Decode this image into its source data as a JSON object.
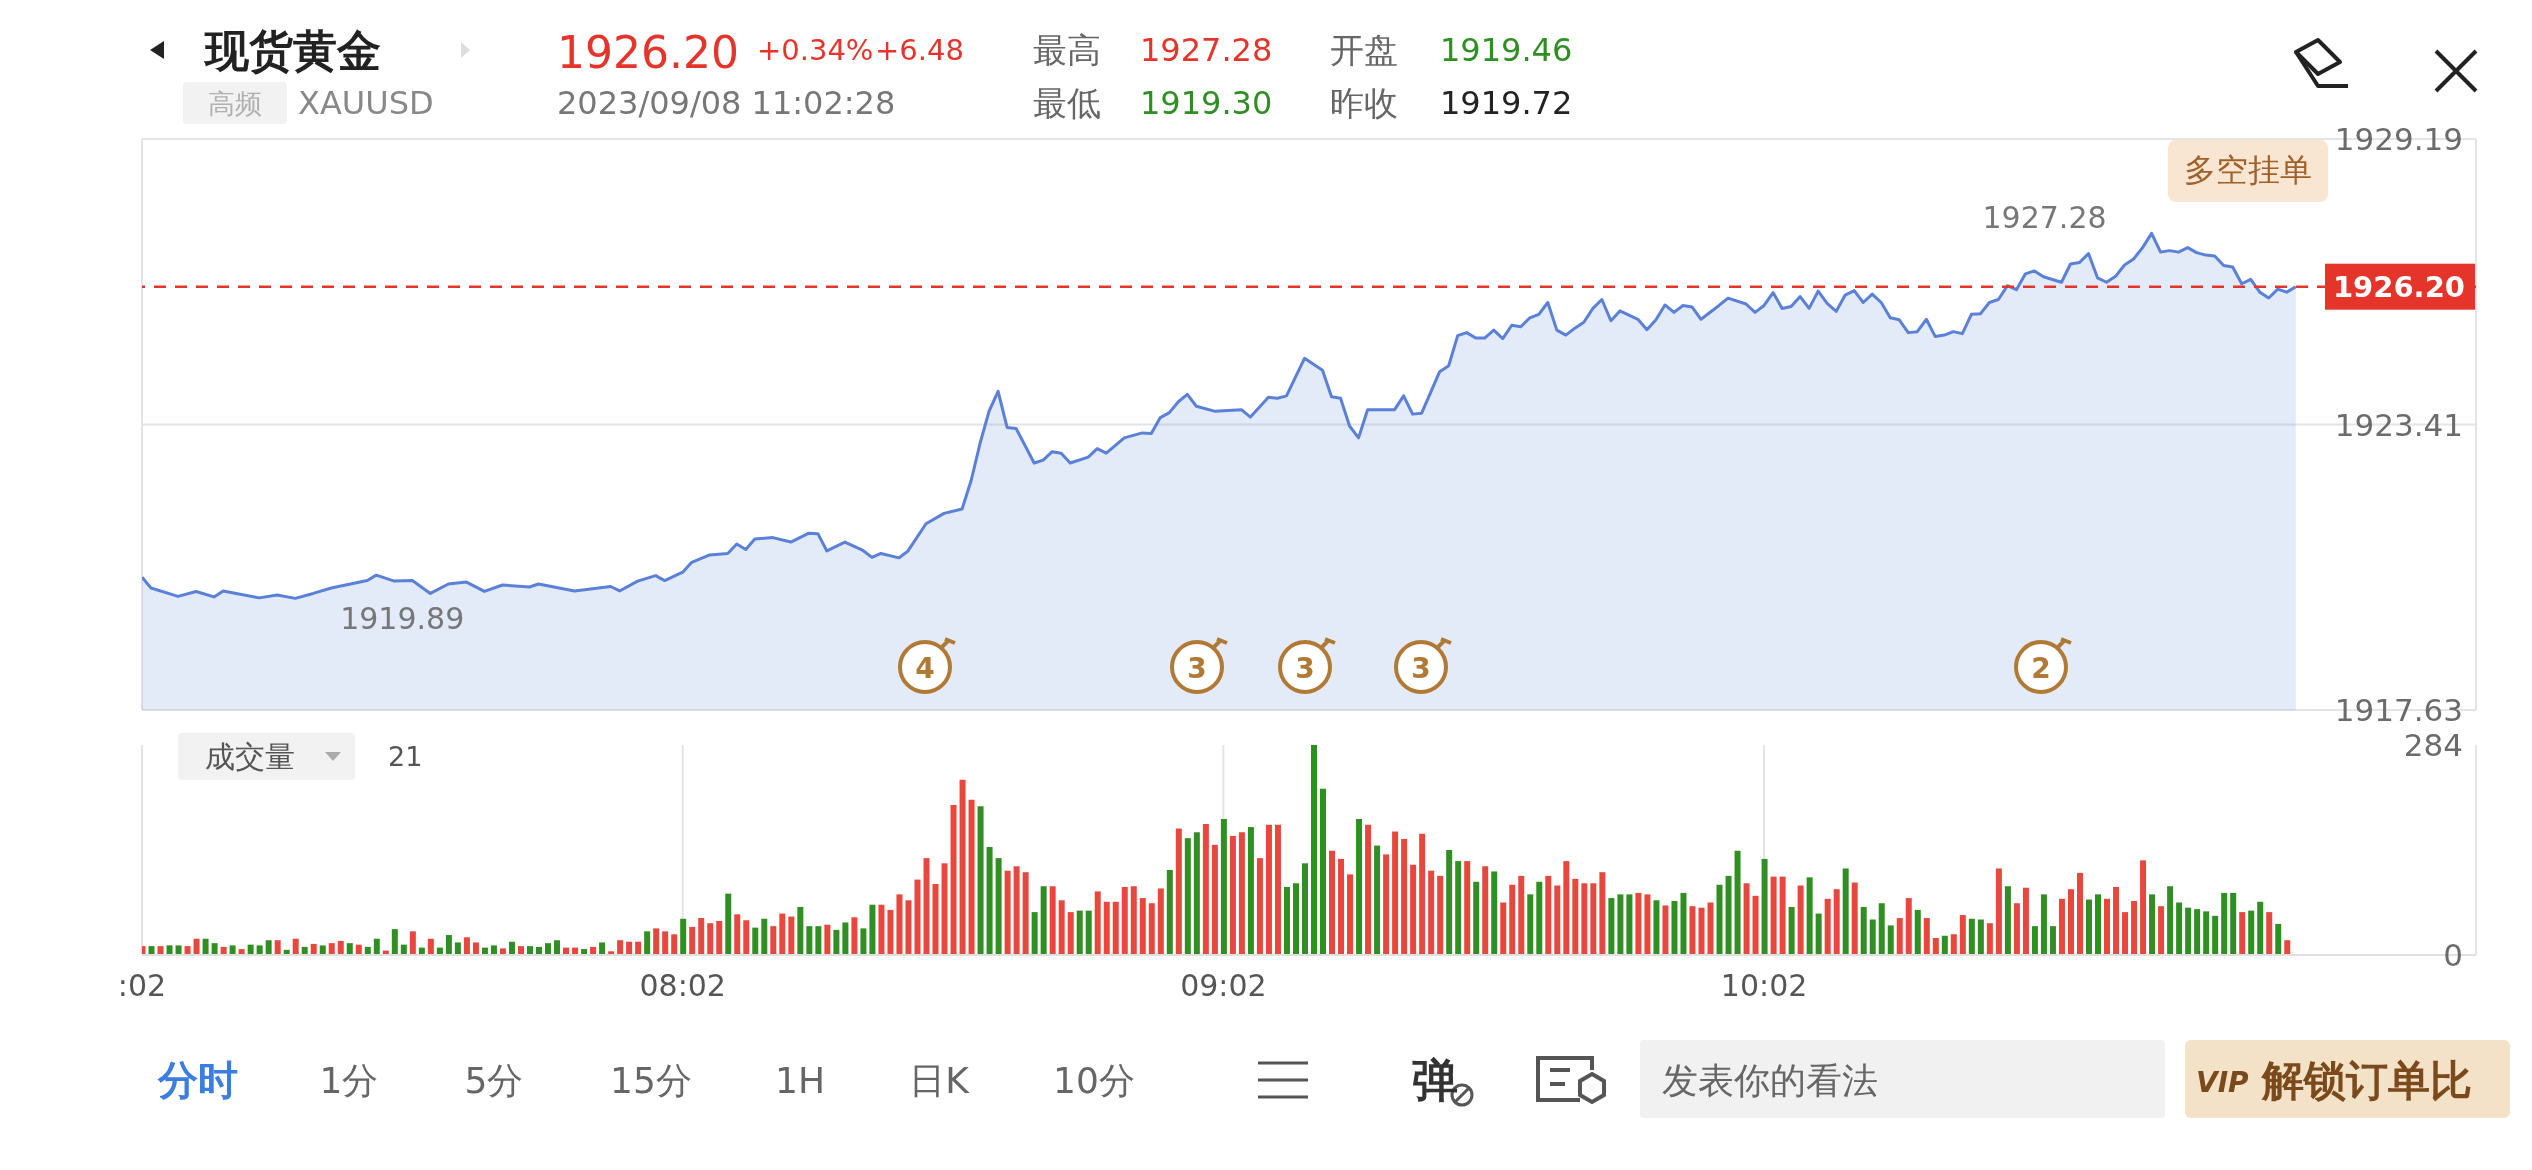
{
  "chart_data": [
    {
      "type": "area",
      "title": "现货黄金",
      "annotations": [
        "1926.20",
        "+0.34%",
        "+6.48",
        "高频",
        "XAUUSD",
        "2023/09/08 11:02:28",
        "最高",
        "1927.28",
        "最低",
        "1919.30",
        "开盘",
        "1919.46",
        "昨收",
        "1919.72",
        "多空挂单",
        {
          "text": "1919.89",
          "x": "2023-09-08T07:19",
          "y": 1919.89
        },
        {
          "text": "1927.28",
          "x": "2023-09-08T10:45",
          "y": 1927.28
        },
        "4",
        "3",
        "3",
        "3",
        "2"
      ],
      "x": [
        "2023-09-08T07:02",
        "2023-09-08T07:03",
        "2023-09-08T07:06",
        "2023-09-08T07:08",
        "2023-09-08T07:10",
        "2023-09-08T07:11",
        "2023-09-08T07:15",
        "2023-09-08T07:17",
        "2023-09-08T07:19",
        "2023-09-08T07:21",
        "2023-09-08T07:23",
        "2023-09-08T07:27",
        "2023-09-08T07:28",
        "2023-09-08T07:30",
        "2023-09-08T07:32",
        "2023-09-08T07:34",
        "2023-09-08T07:36",
        "2023-09-08T07:38",
        "2023-09-08T07:40",
        "2023-09-08T07:42",
        "2023-09-08T07:45",
        "2023-09-08T07:46",
        "2023-09-08T07:50",
        "2023-09-08T07:54",
        "2023-09-08T07:55",
        "2023-09-08T07:57",
        "2023-09-08T07:59",
        "2023-09-08T08:00",
        "2023-09-08T08:02",
        "2023-09-08T08:03",
        "2023-09-08T08:05",
        "2023-09-08T08:07",
        "2023-09-08T08:08",
        "2023-09-08T08:09",
        "2023-09-08T08:10",
        "2023-09-08T08:12",
        "2023-09-08T08:14",
        "2023-09-08T08:16",
        "2023-09-08T08:17",
        "2023-09-08T08:18",
        "2023-09-08T08:20",
        "2023-09-08T08:22",
        "2023-09-08T08:23",
        "2023-09-08T08:24",
        "2023-09-08T08:26",
        "2023-09-08T08:27",
        "2023-09-08T08:29",
        "2023-09-08T08:31",
        "2023-09-08T08:33",
        "2023-09-08T08:34",
        "2023-09-08T08:35",
        "2023-09-08T08:36",
        "2023-09-08T08:37",
        "2023-09-08T08:38",
        "2023-09-08T08:39",
        "2023-09-08T08:41",
        "2023-09-08T08:42",
        "2023-09-08T08:43",
        "2023-09-08T08:44",
        "2023-09-08T08:45",
        "2023-09-08T08:47",
        "2023-09-08T08:48",
        "2023-09-08T08:49",
        "2023-09-08T08:51",
        "2023-09-08T08:53",
        "2023-09-08T08:54",
        "2023-09-08T08:55",
        "2023-09-08T08:56",
        "2023-09-08T08:57",
        "2023-09-08T08:58",
        "2023-09-08T08:59",
        "2023-09-08T09:01",
        "2023-09-08T09:04",
        "2023-09-08T09:05",
        "2023-09-08T09:07",
        "2023-09-08T09:08",
        "2023-09-08T09:09",
        "2023-09-08T09:11",
        "2023-09-08T09:13",
        "2023-09-08T09:14",
        "2023-09-08T09:15",
        "2023-09-08T09:16",
        "2023-09-08T09:17",
        "2023-09-08T09:18",
        "2023-09-08T09:21",
        "2023-09-08T09:22",
        "2023-09-08T09:23",
        "2023-09-08T09:24",
        "2023-09-08T09:26",
        "2023-09-08T09:27",
        "2023-09-08T09:28",
        "2023-09-08T09:29",
        "2023-09-08T09:30",
        "2023-09-08T09:31",
        "2023-09-08T09:32",
        "2023-09-08T09:33",
        "2023-09-08T09:34",
        "2023-09-08T09:35",
        "2023-09-08T09:36",
        "2023-09-08T09:37",
        "2023-09-08T09:38",
        "2023-09-08T09:39",
        "2023-09-08T09:40",
        "2023-09-08T09:41",
        "2023-09-08T09:42",
        "2023-09-08T09:43",
        "2023-09-08T09:44",
        "2023-09-08T09:45",
        "2023-09-08T09:46",
        "2023-09-08T09:48",
        "2023-09-08T09:49",
        "2023-09-08T09:50",
        "2023-09-08T09:51",
        "2023-09-08T09:52",
        "2023-09-08T09:53",
        "2023-09-08T09:54",
        "2023-09-08T09:55",
        "2023-09-08T09:57",
        "2023-09-08T09:58",
        "2023-09-08T10:00",
        "2023-09-08T10:01",
        "2023-09-08T10:02",
        "2023-09-08T10:03",
        "2023-09-08T10:04",
        "2023-09-08T10:05",
        "2023-09-08T10:06",
        "2023-09-08T10:07",
        "2023-09-08T10:08",
        "2023-09-08T10:09",
        "2023-09-08T10:10",
        "2023-09-08T10:11",
        "2023-09-08T10:12",
        "2023-09-08T10:13",
        "2023-09-08T10:14",
        "2023-09-08T10:15",
        "2023-09-08T10:16",
        "2023-09-08T10:17",
        "2023-09-08T10:18",
        "2023-09-08T10:19",
        "2023-09-08T10:20",
        "2023-09-08T10:21",
        "2023-09-08T10:22",
        "2023-09-08T10:23",
        "2023-09-08T10:24",
        "2023-09-08T10:25",
        "2023-09-08T10:26",
        "2023-09-08T10:27",
        "2023-09-08T10:28",
        "2023-09-08T10:29",
        "2023-09-08T10:30",
        "2023-09-08T10:31",
        "2023-09-08T10:32",
        "2023-09-08T10:33",
        "2023-09-08T10:35",
        "2023-09-08T10:36",
        "2023-09-08T10:37",
        "2023-09-08T10:38",
        "2023-09-08T10:39",
        "2023-09-08T10:40",
        "2023-09-08T10:41",
        "2023-09-08T10:42",
        "2023-09-08T10:43",
        "2023-09-08T10:44",
        "2023-09-08T10:45",
        "2023-09-08T10:46",
        "2023-09-08T10:47",
        "2023-09-08T10:48",
        "2023-09-08T10:49",
        "2023-09-08T10:50",
        "2023-09-08T10:51",
        "2023-09-08T10:52",
        "2023-09-08T10:53",
        "2023-09-08T10:54",
        "2023-09-08T10:55",
        "2023-09-08T10:56",
        "2023-09-08T10:57",
        "2023-09-08T10:58",
        "2023-09-08T10:59",
        "2023-09-08T11:00",
        "2023-09-08T11:01"
      ],
      "values": [
        1920.32,
        1920.1,
        1919.93,
        1920.03,
        1919.92,
        1920.04,
        1919.9,
        1919.96,
        1919.89,
        1919.99,
        1920.1,
        1920.25,
        1920.36,
        1920.24,
        1920.25,
        1919.99,
        1920.18,
        1920.22,
        1920.03,
        1920.16,
        1920.12,
        1920.18,
        1920.04,
        1920.13,
        1920.04,
        1920.24,
        1920.35,
        1920.25,
        1920.42,
        1920.62,
        1920.77,
        1920.8,
        1920.99,
        1920.88,
        1921.09,
        1921.12,
        1921.03,
        1921.21,
        1921.2,
        1920.85,
        1921.03,
        1920.86,
        1920.72,
        1920.8,
        1920.71,
        1920.85,
        1921.4,
        1921.61,
        1921.7,
        1922.27,
        1923.03,
        1923.68,
        1924.08,
        1923.35,
        1923.33,
        1922.63,
        1922.69,
        1922.86,
        1922.83,
        1922.63,
        1922.75,
        1922.92,
        1922.83,
        1923.14,
        1923.24,
        1923.23,
        1923.55,
        1923.65,
        1923.87,
        1924.02,
        1923.78,
        1923.68,
        1923.71,
        1923.56,
        1923.96,
        1923.94,
        1923.99,
        1924.75,
        1924.51,
        1923.97,
        1923.94,
        1923.38,
        1923.14,
        1923.71,
        1923.71,
        1923.99,
        1923.62,
        1923.64,
        1924.48,
        1924.6,
        1925.21,
        1925.27,
        1925.16,
        1925.16,
        1925.32,
        1925.15,
        1925.42,
        1925.39,
        1925.57,
        1925.64,
        1925.88,
        1925.32,
        1925.22,
        1925.36,
        1925.48,
        1925.76,
        1925.94,
        1925.51,
        1925.71,
        1925.54,
        1925.33,
        1925.53,
        1925.83,
        1925.68,
        1925.82,
        1925.79,
        1925.54,
        1925.82,
        1925.97,
        1925.85,
        1925.68,
        1925.82,
        1926.08,
        1925.76,
        1925.8,
        1926.0,
        1925.76,
        1926.11,
        1925.86,
        1925.7,
        1926.03,
        1926.12,
        1925.88,
        1926.05,
        1925.88,
        1925.57,
        1925.53,
        1925.27,
        1925.29,
        1925.54,
        1925.19,
        1925.22,
        1925.29,
        1925.25,
        1925.64,
        1925.65,
        1925.88,
        1925.94,
        1926.22,
        1926.14,
        1926.46,
        1926.52,
        1926.4,
        1926.29,
        1926.66,
        1926.69,
        1926.87,
        1926.38,
        1926.29,
        1926.41,
        1926.64,
        1926.76,
        1926.99,
        1927.28,
        1926.9,
        1926.93,
        1926.9,
        1926.99,
        1926.89,
        1926.84,
        1926.82,
        1926.63,
        1926.6,
        1926.26,
        1926.35,
        1926.09,
        1925.97,
        1926.15,
        1926.09,
        1926.2
      ],
      "color": "#5b80d8",
      "xlim": [
        "2023-09-08T07:02",
        "2023-09-08T11:21"
      ],
      "xticks": [
        {
          "value": "2023-09-08T07:02",
          "label": null
        },
        {
          "value": "2023-09-08T08:02",
          "label": null
        },
        {
          "value": "2023-09-08T09:02",
          "label": null
        },
        {
          "value": "2023-09-08T10:02",
          "label": null
        }
      ],
      "ylim": [
        1917.63,
        1929.19
      ],
      "yticks": [
        1917.63,
        1923.41,
        1929.19
      ],
      "grid": true,
      "tick_labels": "y",
      "ref_lines": [
        {
          "axis": "y",
          "value": 1926.2,
          "label": "1926.20",
          "color": "#e5352b",
          "line_style": "dashed"
        }
      ]
    },
    {
      "type": "bar",
      "title": "成交量",
      "annotations": [
        "21",
        "分时",
        "1分",
        "5分",
        "15分",
        "1H",
        "日K",
        "10分",
        "弹",
        "发表你的看法",
        "VIP",
        "解锁订单比"
      ],
      "x": [
        "2023-09-08T07:02",
        "2023-09-08T07:03",
        "2023-09-08T07:04",
        "2023-09-08T07:05",
        "2023-09-08T07:06",
        "2023-09-08T07:07",
        "2023-09-08T07:08",
        "2023-09-08T07:09",
        "2023-09-08T07:10",
        "2023-09-08T07:11",
        "2023-09-08T07:12",
        "2023-09-08T07:13",
        "2023-09-08T07:14",
        "2023-09-08T07:15",
        "2023-09-08T07:16",
        "2023-09-08T07:17",
        "2023-09-08T07:18",
        "2023-09-08T07:19",
        "2023-09-08T07:20",
        "2023-09-08T07:21",
        "2023-09-08T07:22",
        "2023-09-08T07:23",
        "2023-09-08T07:24",
        "2023-09-08T07:25",
        "2023-09-08T07:26",
        "2023-09-08T07:27",
        "2023-09-08T07:28",
        "2023-09-08T07:29",
        "2023-09-08T07:30",
        "2023-09-08T07:31",
        "2023-09-08T07:32",
        "2023-09-08T07:33",
        "2023-09-08T07:34",
        "2023-09-08T07:35",
        "2023-09-08T07:36",
        "2023-09-08T07:37",
        "2023-09-08T07:38",
        "2023-09-08T07:39",
        "2023-09-08T07:40",
        "2023-09-08T07:41",
        "2023-09-08T07:42",
        "2023-09-08T07:43",
        "2023-09-08T07:44",
        "2023-09-08T07:45",
        "2023-09-08T07:46",
        "2023-09-08T07:47",
        "2023-09-08T07:48",
        "2023-09-08T07:49",
        "2023-09-08T07:50",
        "2023-09-08T07:51",
        "2023-09-08T07:52",
        "2023-09-08T07:53",
        "2023-09-08T07:54",
        "2023-09-08T07:55",
        "2023-09-08T07:56",
        "2023-09-08T07:57",
        "2023-09-08T07:58",
        "2023-09-08T07:59",
        "2023-09-08T08:00",
        "2023-09-08T08:01",
        "2023-09-08T08:02",
        "2023-09-08T08:03",
        "2023-09-08T08:04",
        "2023-09-08T08:05",
        "2023-09-08T08:06",
        "2023-09-08T08:07",
        "2023-09-08T08:08",
        "2023-09-08T08:09",
        "2023-09-08T08:10",
        "2023-09-08T08:11",
        "2023-09-08T08:12",
        "2023-09-08T08:13",
        "2023-09-08T08:14",
        "2023-09-08T08:15",
        "2023-09-08T08:16",
        "2023-09-08T08:17",
        "2023-09-08T08:18",
        "2023-09-08T08:19",
        "2023-09-08T08:20",
        "2023-09-08T08:21",
        "2023-09-08T08:22",
        "2023-09-08T08:23",
        "2023-09-08T08:24",
        "2023-09-08T08:25",
        "2023-09-08T08:26",
        "2023-09-08T08:27",
        "2023-09-08T08:28",
        "2023-09-08T08:29",
        "2023-09-08T08:30",
        "2023-09-08T08:31",
        "2023-09-08T08:32",
        "2023-09-08T08:33",
        "2023-09-08T08:34",
        "2023-09-08T08:35",
        "2023-09-08T08:36",
        "2023-09-08T08:37",
        "2023-09-08T08:38",
        "2023-09-08T08:39",
        "2023-09-08T08:40",
        "2023-09-08T08:41",
        "2023-09-08T08:42",
        "2023-09-08T08:43",
        "2023-09-08T08:44",
        "2023-09-08T08:45",
        "2023-09-08T08:46",
        "2023-09-08T08:47",
        "2023-09-08T08:48",
        "2023-09-08T08:49",
        "2023-09-08T08:50",
        "2023-09-08T08:51",
        "2023-09-08T08:52",
        "2023-09-08T08:53",
        "2023-09-08T08:54",
        "2023-09-08T08:55",
        "2023-09-08T08:56",
        "2023-09-08T08:57",
        "2023-09-08T08:58",
        "2023-09-08T08:59",
        "2023-09-08T09:00",
        "2023-09-08T09:01",
        "2023-09-08T09:02",
        "2023-09-08T09:03",
        "2023-09-08T09:04",
        "2023-09-08T09:05",
        "2023-09-08T09:06",
        "2023-09-08T09:07",
        "2023-09-08T09:08",
        "2023-09-08T09:09",
        "2023-09-08T09:10",
        "2023-09-08T09:11",
        "2023-09-08T09:12",
        "2023-09-08T09:13",
        "2023-09-08T09:14",
        "2023-09-08T09:15",
        "2023-09-08T09:16",
        "2023-09-08T09:17",
        "2023-09-08T09:18",
        "2023-09-08T09:19",
        "2023-09-08T09:20",
        "2023-09-08T09:21",
        "2023-09-08T09:22",
        "2023-09-08T09:23",
        "2023-09-08T09:24",
        "2023-09-08T09:25",
        "2023-09-08T09:26",
        "2023-09-08T09:27",
        "2023-09-08T09:28",
        "2023-09-08T09:29",
        "2023-09-08T09:30",
        "2023-09-08T09:31",
        "2023-09-08T09:32",
        "2023-09-08T09:33",
        "2023-09-08T09:34",
        "2023-09-08T09:35",
        "2023-09-08T09:36",
        "2023-09-08T09:37",
        "2023-09-08T09:38",
        "2023-09-08T09:39",
        "2023-09-08T09:40",
        "2023-09-08T09:41",
        "2023-09-08T09:42",
        "2023-09-08T09:43",
        "2023-09-08T09:44",
        "2023-09-08T09:45",
        "2023-09-08T09:46",
        "2023-09-08T09:47",
        "2023-09-08T09:48",
        "2023-09-08T09:49",
        "2023-09-08T09:50",
        "2023-09-08T09:51",
        "2023-09-08T09:52",
        "2023-09-08T09:53",
        "2023-09-08T09:54",
        "2023-09-08T09:55",
        "2023-09-08T09:56",
        "2023-09-08T09:57",
        "2023-09-08T09:58",
        "2023-09-08T09:59",
        "2023-09-08T10:00",
        "2023-09-08T10:01",
        "2023-09-08T10:02",
        "2023-09-08T10:03",
        "2023-09-08T10:04",
        "2023-09-08T10:05",
        "2023-09-08T10:06",
        "2023-09-08T10:07",
        "2023-09-08T10:08",
        "2023-09-08T10:09",
        "2023-09-08T10:10",
        "2023-09-08T10:11",
        "2023-09-08T10:12",
        "2023-09-08T10:13",
        "2023-09-08T10:14",
        "2023-09-08T10:15",
        "2023-09-08T10:16",
        "2023-09-08T10:17",
        "2023-09-08T10:18",
        "2023-09-08T10:19",
        "2023-09-08T10:20",
        "2023-09-08T10:21",
        "2023-09-08T10:22",
        "2023-09-08T10:23",
        "2023-09-08T10:24",
        "2023-09-08T10:25",
        "2023-09-08T10:26",
        "2023-09-08T10:27",
        "2023-09-08T10:28",
        "2023-09-08T10:29",
        "2023-09-08T10:30",
        "2023-09-08T10:31",
        "2023-09-08T10:32",
        "2023-09-08T10:33",
        "2023-09-08T10:34",
        "2023-09-08T10:35",
        "2023-09-08T10:36",
        "2023-09-08T10:37",
        "2023-09-08T10:38",
        "2023-09-08T10:39",
        "2023-09-08T10:40",
        "2023-09-08T10:41",
        "2023-09-08T10:42",
        "2023-09-08T10:43",
        "2023-09-08T10:44",
        "2023-09-08T10:45",
        "2023-09-08T10:46",
        "2023-09-08T10:47",
        "2023-09-08T10:48",
        "2023-09-08T10:49",
        "2023-09-08T10:50",
        "2023-09-08T10:51",
        "2023-09-08T10:52",
        "2023-09-08T10:53",
        "2023-09-08T10:54",
        "2023-09-08T10:55",
        "2023-09-08T10:56",
        "2023-09-08T10:57",
        "2023-09-08T10:58",
        "2023-09-08T10:59",
        "2023-09-08T11:00"
      ],
      "values": [
        12,
        12,
        12,
        13,
        13,
        12,
        22,
        22,
        16,
        11,
        13,
        8,
        14,
        13,
        20,
        20,
        7,
        22,
        11,
        15,
        13,
        16,
        19,
        16,
        14,
        11,
        22,
        6,
        35,
        14,
        32,
        10,
        22,
        10,
        27,
        17,
        24,
        17,
        10,
        13,
        9,
        18,
        12,
        12,
        11,
        16,
        20,
        10,
        10,
        8,
        11,
        17,
        5,
        20,
        18,
        18,
        32,
        36,
        32,
        28,
        49,
        38,
        50,
        43,
        46,
        83,
        55,
        47,
        37,
        49,
        39,
        56,
        52,
        65,
        39,
        39,
        41,
        34,
        44,
        51,
        36,
        68,
        68,
        61,
        82,
        74,
        102,
        131,
        96,
        124,
        203,
        237,
        210,
        201,
        146,
        131,
        114,
        120,
        112,
        58,
        93,
        93,
        74,
        58,
        60,
        60,
        86,
        72,
        72,
        92,
        93,
        77,
        70,
        90,
        115,
        171,
        158,
        166,
        177,
        149,
        184,
        161,
        166,
        173,
        131,
        176,
        176,
        92,
        97,
        124,
        284,
        225,
        141,
        130,
        109,
        184,
        176,
        148,
        136,
        167,
        157,
        122,
        164,
        114,
        107,
        142,
        127,
        127,
        99,
        120,
        113,
        71,
        95,
        107,
        82,
        99,
        107,
        94,
        127,
        103,
        97,
        97,
        112,
        77,
        82,
        82,
        84,
        82,
        74,
        67,
        73,
        84,
        66,
        64,
        71,
        95,
        107,
        141,
        97,
        80,
        130,
        106,
        106,
        65,
        94,
        105,
        56,
        76,
        89,
        117,
        98,
        65,
        48,
        70,
        40,
        50,
        77,
        61,
        50,
        23,
        26,
        28,
        54,
        49,
        48,
        43,
        117,
        93,
        70,
        91,
        39,
        82,
        39,
        76,
        89,
        111,
        75,
        82,
        76,
        92,
        58,
        73,
        128,
        82,
        66,
        93,
        71,
        64,
        62,
        59,
        53,
        84,
        84,
        58,
        60,
        72,
        58,
        42,
        20
      ],
      "colors": [
        "#e8473d",
        "#2f8f22",
        "#e8473d",
        "#2f8f22",
        "#2f8f22",
        "#e8473d",
        "#e8473d",
        "#2f8f22",
        "#2f8f22",
        "#e8473d",
        "#2f8f22",
        "#e8473d",
        "#2f8f22",
        "#2f8f22",
        "#2f8f22",
        "#e8473d",
        "#2f8f22",
        "#e8473d",
        "#2f8f22",
        "#e8473d",
        "#2f8f22",
        "#e8473d",
        "#e8473d",
        "#2f8f22",
        "#e8473d",
        "#2f8f22",
        "#2f8f22",
        "#e8473d",
        "#2f8f22",
        "#2f8f22",
        "#e8473d",
        "#2f8f22",
        "#e8473d",
        "#2f8f22",
        "#2f8f22",
        "#2f8f22",
        "#e8473d",
        "#e8473d",
        "#2f8f22",
        "#2f8f22",
        "#e8473d",
        "#2f8f22",
        "#e8473d",
        "#2f8f22",
        "#2f8f22",
        "#2f8f22",
        "#2f8f22",
        "#e8473d",
        "#e8473d",
        "#2f8f22",
        "#e8473d",
        "#2f8f22",
        "#e8473d",
        "#e8473d",
        "#e8473d",
        "#e8473d",
        "#2f8f22",
        "#e8473d",
        "#e8473d",
        "#e8473d",
        "#2f8f22",
        "#e8473d",
        "#e8473d",
        "#e8473d",
        "#e8473d",
        "#2f8f22",
        "#e8473d",
        "#e8473d",
        "#2f8f22",
        "#2f8f22",
        "#e8473d",
        "#e8473d",
        "#e8473d",
        "#2f8f22",
        "#2f8f22",
        "#2f8f22",
        "#e8473d",
        "#2f8f22",
        "#2f8f22",
        "#e8473d",
        "#2f8f22",
        "#2f8f22",
        "#e8473d",
        "#e8473d",
        "#e8473d",
        "#e8473d",
        "#e8473d",
        "#e8473d",
        "#e8473d",
        "#e8473d",
        "#e8473d",
        "#e8473d",
        "#e8473d",
        "#2f8f22",
        "#2f8f22",
        "#2f8f22",
        "#e8473d",
        "#e8473d",
        "#e8473d",
        "#2f8f22",
        "#2f8f22",
        "#e8473d",
        "#e8473d",
        "#e8473d",
        "#2f8f22",
        "#2f8f22",
        "#e8473d",
        "#e8473d",
        "#e8473d",
        "#e8473d",
        "#e8473d",
        "#e8473d",
        "#e8473d",
        "#e8473d",
        "#2f8f22",
        "#e8473d",
        "#2f8f22",
        "#2f8f22",
        "#e8473d",
        "#e8473d",
        "#2f8f22",
        "#e8473d",
        "#e8473d",
        "#2f8f22",
        "#e8473d",
        "#e8473d",
        "#e8473d",
        "#2f8f22",
        "#2f8f22",
        "#2f8f22",
        "#2f8f22",
        "#2f8f22",
        "#e8473d",
        "#e8473d",
        "#e8473d",
        "#2f8f22",
        "#e8473d",
        "#2f8f22",
        "#e8473d",
        "#e8473d",
        "#e8473d",
        "#e8473d",
        "#e8473d",
        "#e8473d",
        "#e8473d",
        "#2f8f22",
        "#2f8f22",
        "#e8473d",
        "#2f8f22",
        "#e8473d",
        "#2f8f22",
        "#e8473d",
        "#e8473d",
        "#e8473d",
        "#2f8f22",
        "#2f8f22",
        "#e8473d",
        "#e8473d",
        "#e8473d",
        "#e8473d",
        "#e8473d",
        "#e8473d",
        "#e8473d",
        "#2f8f22",
        "#2f8f22",
        "#2f8f22",
        "#e8473d",
        "#e8473d",
        "#2f8f22",
        "#e8473d",
        "#2f8f22",
        "#2f8f22",
        "#e8473d",
        "#e8473d",
        "#e8473d",
        "#2f8f22",
        "#2f8f22",
        "#2f8f22",
        "#e8473d",
        "#e8473d",
        "#2f8f22",
        "#e8473d",
        "#e8473d",
        "#2f8f22",
        "#e8473d",
        "#2f8f22",
        "#2f8f22",
        "#e8473d",
        "#e8473d",
        "#2f8f22",
        "#e8473d",
        "#2f8f22",
        "#2f8f22",
        "#2f8f22",
        "#2f8f22",
        "#e8473d",
        "#e8473d",
        "#2f8f22",
        "#e8473d",
        "#e8473d",
        "#2f8f22",
        "#e8473d",
        "#e8473d",
        "#2f8f22",
        "#2f8f22",
        "#e8473d",
        "#e8473d",
        "#2f8f22",
        "#e8473d",
        "#e8473d",
        "#2f8f22",
        "#2f8f22",
        "#2f8f22",
        "#e8473d",
        "#e8473d",
        "#e8473d",
        "#2f8f22",
        "#2f8f22",
        "#e8473d",
        "#e8473d",
        "#e8473d",
        "#e8473d",
        "#e8473d",
        "#2f8f22",
        "#e8473d",
        "#2f8f22",
        "#2f8f22",
        "#2f8f22",
        "#2f8f22",
        "#2f8f22",
        "#2f8f22",
        "#2f8f22",
        "#2f8f22",
        "#e8473d",
        "#2f8f22",
        "#2f8f22",
        "#e8473d",
        "#2f8f22",
        "#e8473d"
      ],
      "xlim": [
        "2023-09-08T07:02",
        "2023-09-08T11:21"
      ],
      "xticks": [
        {
          "value": "2023-09-08T07:02",
          "label": ":02"
        },
        {
          "value": "2023-09-08T08:02",
          "label": "08:02"
        },
        {
          "value": "2023-09-08T09:02",
          "label": "09:02"
        },
        {
          "value": "2023-09-08T10:02",
          "label": "10:02"
        }
      ],
      "ylim": [
        0,
        284
      ],
      "yticks": [
        0,
        284
      ],
      "grid": "x"
    }
  ]
}
